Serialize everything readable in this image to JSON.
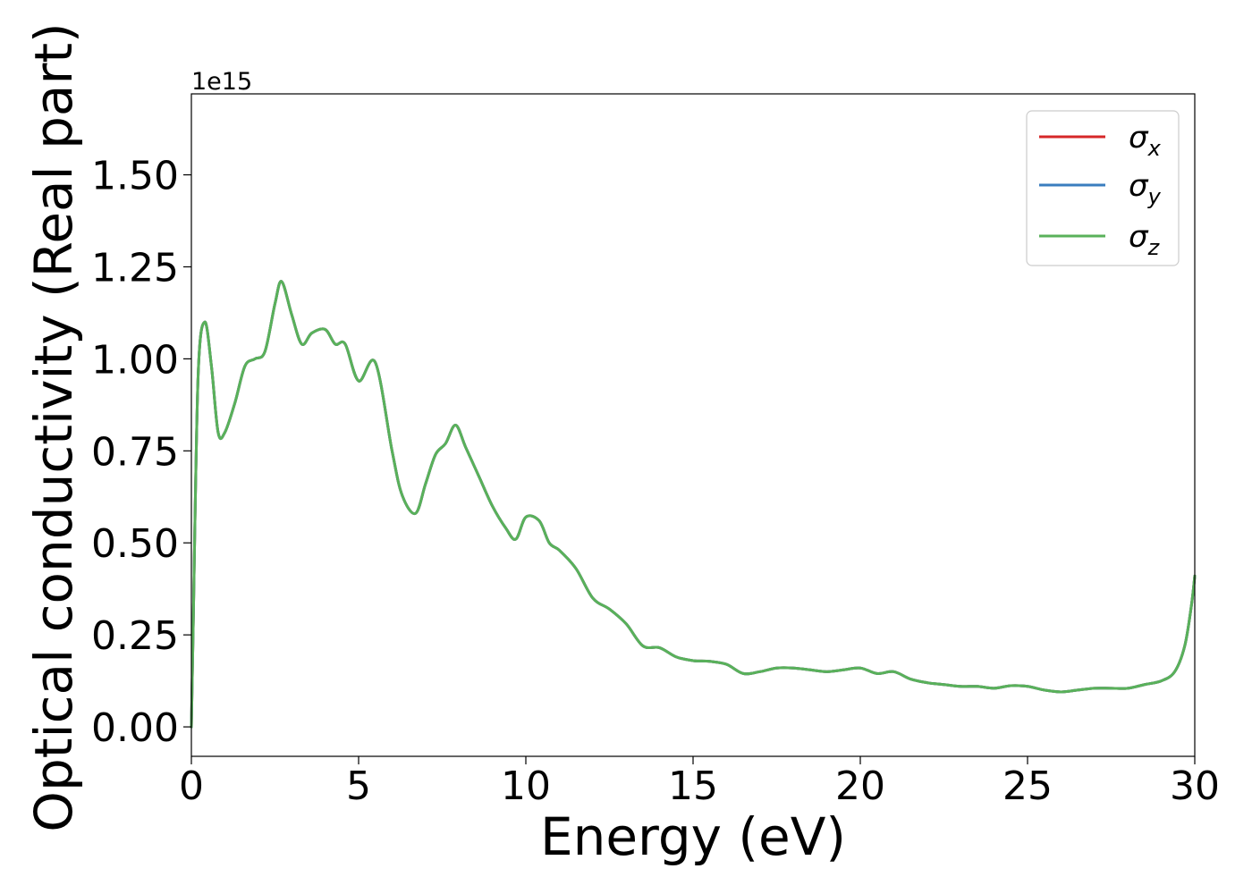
{
  "chart_data": {
    "type": "line",
    "title": "",
    "xlabel": "Energy (eV)",
    "ylabel": "Optical conductivity (Real part)",
    "y_offset_label": "1e15",
    "y_scale_factor": 1000000000000000.0,
    "xlim": [
      0,
      30
    ],
    "ylim": [
      -0.08,
      1.72
    ],
    "x_ticks": [
      0,
      5,
      10,
      15,
      20,
      25,
      30
    ],
    "x_tick_labels": [
      "0",
      "5",
      "10",
      "15",
      "20",
      "25",
      "30"
    ],
    "y_ticks": [
      0.0,
      0.25,
      0.5,
      0.75,
      1.0,
      1.25,
      1.5
    ],
    "y_tick_labels": [
      "0.00",
      "0.25",
      "0.50",
      "0.75",
      "1.00",
      "1.25",
      "1.50"
    ],
    "grid": false,
    "legend": {
      "position": "top-right",
      "entries": [
        {
          "symbol": "σ",
          "subscript": "x",
          "color": "#d62728"
        },
        {
          "symbol": "σ",
          "subscript": "y",
          "color": "#3a7dbf"
        },
        {
          "symbol": "σ",
          "subscript": "z",
          "color": "#59b15a"
        }
      ]
    },
    "series": [
      {
        "key": "sigma_x",
        "color": "#d62728",
        "x": [
          0,
          0.05,
          0.2,
          0.4,
          0.6,
          0.8,
          1.0,
          1.3,
          1.6,
          1.9,
          2.2,
          2.5,
          2.7,
          3.0,
          3.3,
          3.6,
          4.0,
          4.3,
          4.6,
          5.0,
          5.5,
          6.0,
          6.3,
          6.7,
          7.0,
          7.3,
          7.6,
          7.9,
          8.2,
          8.6,
          9.0,
          9.4,
          9.7,
          10.0,
          10.4,
          10.7,
          11.0,
          11.5,
          12.0,
          12.5,
          13.0,
          13.5,
          14.0,
          14.5,
          15.0,
          15.5,
          16.0,
          16.5,
          17.0,
          17.5,
          18.0,
          18.5,
          19.0,
          19.5,
          20.0,
          20.5,
          21.0,
          21.5,
          22.0,
          22.5,
          23.0,
          23.5,
          24.0,
          24.5,
          25.0,
          25.5,
          26.0,
          26.5,
          27.0,
          27.5,
          28.0,
          28.5,
          29.0,
          29.4,
          29.7,
          29.9,
          30.0
        ],
        "values": [
          0.0,
          0.25,
          0.95,
          1.1,
          0.98,
          0.8,
          0.8,
          0.88,
          0.98,
          1.0,
          1.02,
          1.15,
          1.21,
          1.12,
          1.04,
          1.07,
          1.08,
          1.04,
          1.04,
          0.94,
          0.99,
          0.75,
          0.63,
          0.58,
          0.66,
          0.74,
          0.77,
          0.82,
          0.76,
          0.68,
          0.6,
          0.54,
          0.51,
          0.57,
          0.56,
          0.5,
          0.48,
          0.43,
          0.35,
          0.32,
          0.28,
          0.22,
          0.215,
          0.19,
          0.18,
          0.178,
          0.17,
          0.145,
          0.15,
          0.16,
          0.16,
          0.155,
          0.15,
          0.155,
          0.16,
          0.145,
          0.15,
          0.13,
          0.12,
          0.115,
          0.11,
          0.11,
          0.105,
          0.112,
          0.11,
          0.1,
          0.095,
          0.1,
          0.105,
          0.105,
          0.105,
          0.115,
          0.125,
          0.15,
          0.22,
          0.33,
          0.41
        ]
      },
      {
        "key": "sigma_y",
        "color": "#3a7dbf",
        "x": [
          0,
          0.05,
          0.2,
          0.4,
          0.6,
          0.8,
          1.0,
          1.3,
          1.6,
          1.9,
          2.2,
          2.5,
          2.7,
          3.0,
          3.3,
          3.6,
          4.0,
          4.3,
          4.6,
          5.0,
          5.5,
          6.0,
          6.3,
          6.7,
          7.0,
          7.3,
          7.6,
          7.9,
          8.2,
          8.6,
          9.0,
          9.4,
          9.7,
          10.0,
          10.4,
          10.7,
          11.0,
          11.5,
          12.0,
          12.5,
          13.0,
          13.5,
          14.0,
          14.5,
          15.0,
          15.5,
          16.0,
          16.5,
          17.0,
          17.5,
          18.0,
          18.5,
          19.0,
          19.5,
          20.0,
          20.5,
          21.0,
          21.5,
          22.0,
          22.5,
          23.0,
          23.5,
          24.0,
          24.5,
          25.0,
          25.5,
          26.0,
          26.5,
          27.0,
          27.5,
          28.0,
          28.5,
          29.0,
          29.4,
          29.7,
          29.9,
          30.0
        ],
        "values": [
          0.0,
          0.25,
          0.95,
          1.1,
          0.98,
          0.8,
          0.8,
          0.88,
          0.98,
          1.0,
          1.02,
          1.15,
          1.21,
          1.12,
          1.04,
          1.07,
          1.08,
          1.04,
          1.04,
          0.94,
          0.99,
          0.75,
          0.63,
          0.58,
          0.66,
          0.74,
          0.77,
          0.82,
          0.76,
          0.68,
          0.6,
          0.54,
          0.51,
          0.57,
          0.56,
          0.5,
          0.48,
          0.43,
          0.35,
          0.32,
          0.28,
          0.22,
          0.215,
          0.19,
          0.18,
          0.178,
          0.17,
          0.145,
          0.15,
          0.16,
          0.16,
          0.155,
          0.15,
          0.155,
          0.16,
          0.145,
          0.15,
          0.13,
          0.12,
          0.115,
          0.11,
          0.11,
          0.105,
          0.112,
          0.11,
          0.1,
          0.095,
          0.1,
          0.105,
          0.105,
          0.105,
          0.115,
          0.125,
          0.15,
          0.22,
          0.33,
          0.41
        ]
      },
      {
        "key": "sigma_z",
        "color": "#59b15a",
        "x": [
          0,
          0.05,
          0.2,
          0.4,
          0.6,
          0.8,
          1.0,
          1.3,
          1.6,
          1.9,
          2.2,
          2.5,
          2.7,
          3.0,
          3.3,
          3.6,
          4.0,
          4.3,
          4.6,
          5.0,
          5.5,
          6.0,
          6.3,
          6.7,
          7.0,
          7.3,
          7.6,
          7.9,
          8.2,
          8.6,
          9.0,
          9.4,
          9.7,
          10.0,
          10.4,
          10.7,
          11.0,
          11.5,
          12.0,
          12.5,
          13.0,
          13.5,
          14.0,
          14.5,
          15.0,
          15.5,
          16.0,
          16.5,
          17.0,
          17.5,
          18.0,
          18.5,
          19.0,
          19.5,
          20.0,
          20.5,
          21.0,
          21.5,
          22.0,
          22.5,
          23.0,
          23.5,
          24.0,
          24.5,
          25.0,
          25.5,
          26.0,
          26.5,
          27.0,
          27.5,
          28.0,
          28.5,
          29.0,
          29.4,
          29.7,
          29.9,
          30.0
        ],
        "values": [
          0.0,
          0.25,
          0.95,
          1.1,
          0.98,
          0.8,
          0.8,
          0.88,
          0.98,
          1.0,
          1.02,
          1.15,
          1.21,
          1.12,
          1.04,
          1.07,
          1.08,
          1.04,
          1.04,
          0.94,
          0.99,
          0.75,
          0.63,
          0.58,
          0.66,
          0.74,
          0.77,
          0.82,
          0.76,
          0.68,
          0.6,
          0.54,
          0.51,
          0.57,
          0.56,
          0.5,
          0.48,
          0.43,
          0.35,
          0.32,
          0.28,
          0.22,
          0.215,
          0.19,
          0.18,
          0.178,
          0.17,
          0.145,
          0.15,
          0.16,
          0.16,
          0.155,
          0.15,
          0.155,
          0.16,
          0.145,
          0.15,
          0.13,
          0.12,
          0.115,
          0.11,
          0.11,
          0.105,
          0.112,
          0.11,
          0.1,
          0.095,
          0.1,
          0.105,
          0.105,
          0.105,
          0.115,
          0.125,
          0.15,
          0.22,
          0.33,
          0.41
        ]
      }
    ]
  }
}
